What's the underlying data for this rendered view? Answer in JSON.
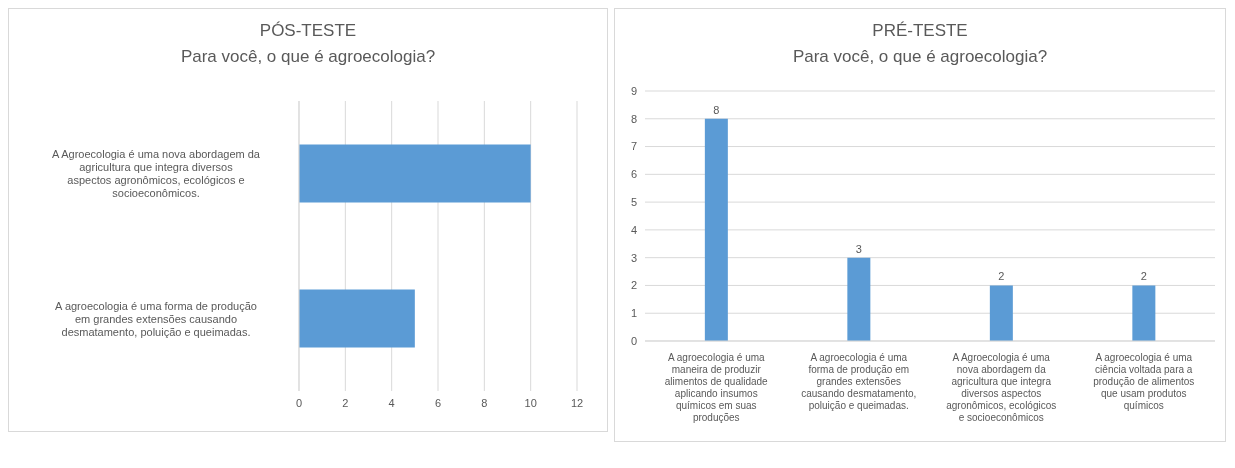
{
  "chart_data": [
    {
      "type": "bar",
      "orientation": "horizontal",
      "title": "PÓS-TESTE",
      "subtitle": "Para você, o que é agroecologia?",
      "categories": [
        "A Agroecologia é uma nova abordagem da agricultura que integra diversos aspectos agronômicos, ecológicos e socioeconômicos.",
        "A agroecologia é uma forma de produção em grandes extensões causando desmatamento, poluição e queimadas."
      ],
      "values": [
        10,
        5
      ],
      "color": "#5b9bd5",
      "xlim": [
        0,
        12
      ],
      "xticks": [
        0,
        2,
        4,
        6,
        8,
        10,
        12
      ],
      "grid": "x"
    },
    {
      "type": "bar",
      "title": "PRÉ-TESTE",
      "subtitle": "Para você, o que é agroecologia?",
      "categories": [
        "A agroecologia é uma maneira de produzir alimentos de qualidade aplicando insumos químicos em suas produções",
        "A agroecologia é uma forma de produção em grandes extensões causando desmatamento, poluição e queimadas.",
        "A Agroecologia é uma nova abordagem da agricultura que integra diversos aspectos agronômicos, ecológicos e socioeconômicos",
        "A agroecologia é uma ciência voltada para a produção de alimentos que usam produtos químicos"
      ],
      "values": [
        8,
        3,
        2,
        2
      ],
      "color": "#5b9bd5",
      "ylim": [
        0,
        9
      ],
      "yticks": [
        0,
        1,
        2,
        3,
        4,
        5,
        6,
        7,
        8,
        9
      ],
      "grid": "y",
      "data_labels": true
    }
  ]
}
